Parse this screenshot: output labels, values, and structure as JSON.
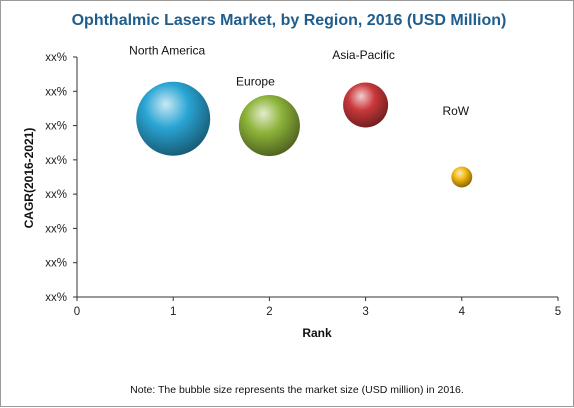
{
  "colors": {
    "title": "#1f5d8c",
    "axis": "#333333",
    "North America": "#2aa5d4",
    "Europe": "#8db33a",
    "Asia-Pacific": "#c9383b",
    "RoW": "#f2b70f"
  },
  "chart_data": {
    "type": "scatter",
    "subtype": "bubble",
    "title": "Ophthalmic Lasers Market, by Region, 2016 (USD Million)",
    "xlabel": "Rank",
    "ylabel": "CAGR(2016-2021)",
    "xlim": [
      0,
      5
    ],
    "ylim": [
      0,
      7
    ],
    "x_ticks": [
      "0",
      "1",
      "2",
      "3",
      "4",
      "5"
    ],
    "y_ticks": [
      "xx%",
      "xx%",
      "xx%",
      "xx%",
      "xx%",
      "xx%",
      "xx%",
      "xx%"
    ],
    "grid": false,
    "legend": "none",
    "points": [
      {
        "label": "North America",
        "x": 1,
        "y": 5.2,
        "size": 100
      },
      {
        "label": "Europe",
        "x": 2,
        "y": 5.0,
        "size": 68
      },
      {
        "label": "Asia-Pacific",
        "x": 3,
        "y": 5.6,
        "size": 37
      },
      {
        "label": "RoW",
        "x": 4,
        "y": 3.5,
        "size": 8
      }
    ],
    "note": "Note: The bubble size represents the market size (USD million) in 2016."
  }
}
